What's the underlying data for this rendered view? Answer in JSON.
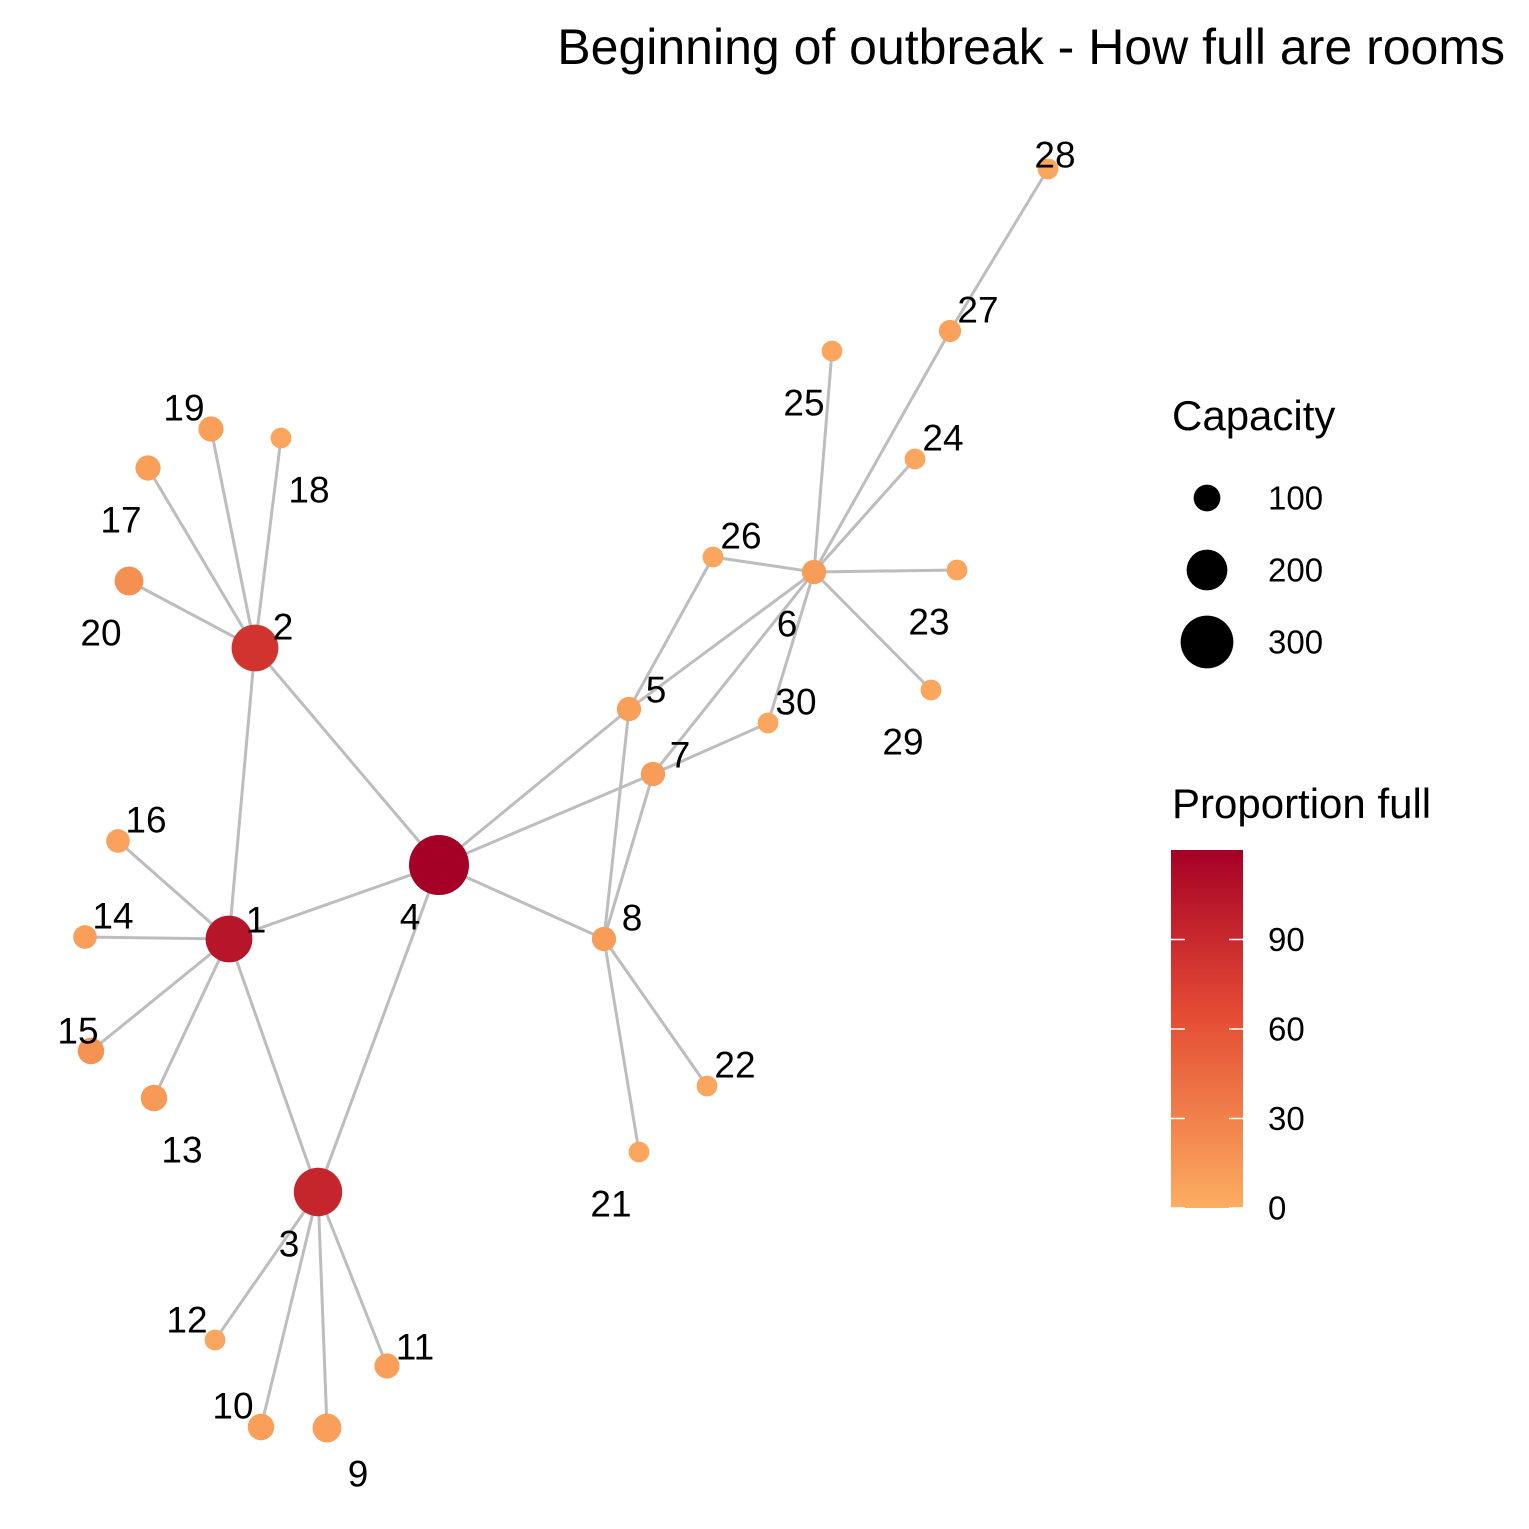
{
  "title": "Beginning of outbreak - How full are rooms",
  "nodes": [
    {
      "id": "1",
      "capacity": 160,
      "proportion_full": 105
    },
    {
      "id": "2",
      "capacity": 160,
      "proportion_full": 82
    },
    {
      "id": "3",
      "capacity": 175,
      "proportion_full": 92
    },
    {
      "id": "4",
      "capacity": 300,
      "proportion_full": 120
    },
    {
      "id": "5",
      "capacity": 22,
      "proportion_full": 10
    },
    {
      "id": "6",
      "capacity": 22,
      "proportion_full": 12
    },
    {
      "id": "7",
      "capacity": 22,
      "proportion_full": 12
    },
    {
      "id": "8",
      "capacity": 22,
      "proportion_full": 12
    },
    {
      "id": "9",
      "capacity": 40,
      "proportion_full": 10
    },
    {
      "id": "10",
      "capacity": 30,
      "proportion_full": 10
    },
    {
      "id": "11",
      "capacity": 25,
      "proportion_full": 10
    },
    {
      "id": "12",
      "capacity": 12,
      "proportion_full": 5
    },
    {
      "id": "13",
      "capacity": 30,
      "proportion_full": 14
    },
    {
      "id": "14",
      "capacity": 20,
      "proportion_full": 10
    },
    {
      "id": "15",
      "capacity": 30,
      "proportion_full": 18
    },
    {
      "id": "16",
      "capacity": 20,
      "proportion_full": 8
    },
    {
      "id": "17",
      "capacity": 25,
      "proportion_full": 10
    },
    {
      "id": "18",
      "capacity": 12,
      "proportion_full": 5
    },
    {
      "id": "19",
      "capacity": 25,
      "proportion_full": 10
    },
    {
      "id": "20",
      "capacity": 40,
      "proportion_full": 20
    },
    {
      "id": "21",
      "capacity": 12,
      "proportion_full": 5
    },
    {
      "id": "22",
      "capacity": 12,
      "proportion_full": 5
    },
    {
      "id": "23",
      "capacity": 12,
      "proportion_full": 5
    },
    {
      "id": "24",
      "capacity": 12,
      "proportion_full": 5
    },
    {
      "id": "25",
      "capacity": 12,
      "proportion_full": 5
    },
    {
      "id": "26",
      "capacity": 12,
      "proportion_full": 5
    },
    {
      "id": "27",
      "capacity": 16,
      "proportion_full": 8
    },
    {
      "id": "28",
      "capacity": 12,
      "proportion_full": 5
    },
    {
      "id": "29",
      "capacity": 12,
      "proportion_full": 5
    },
    {
      "id": "30",
      "capacity": 12,
      "proportion_full": 5
    }
  ],
  "edges": [
    [
      "1",
      "2"
    ],
    [
      "1",
      "3"
    ],
    [
      "1",
      "4"
    ],
    [
      "1",
      "13"
    ],
    [
      "1",
      "14"
    ],
    [
      "1",
      "15"
    ],
    [
      "1",
      "16"
    ],
    [
      "2",
      "4"
    ],
    [
      "2",
      "17"
    ],
    [
      "2",
      "18"
    ],
    [
      "2",
      "19"
    ],
    [
      "2",
      "20"
    ],
    [
      "3",
      "4"
    ],
    [
      "3",
      "9"
    ],
    [
      "3",
      "10"
    ],
    [
      "3",
      "11"
    ],
    [
      "3",
      "12"
    ],
    [
      "4",
      "5"
    ],
    [
      "4",
      "7"
    ],
    [
      "4",
      "8"
    ],
    [
      "5",
      "6"
    ],
    [
      "5",
      "8"
    ],
    [
      "5",
      "26"
    ],
    [
      "6",
      "7"
    ],
    [
      "6",
      "23"
    ],
    [
      "6",
      "24"
    ],
    [
      "6",
      "25"
    ],
    [
      "6",
      "26"
    ],
    [
      "6",
      "27"
    ],
    [
      "6",
      "29"
    ],
    [
      "6",
      "30"
    ],
    [
      "7",
      "8"
    ],
    [
      "7",
      "30"
    ],
    [
      "8",
      "21"
    ],
    [
      "8",
      "22"
    ],
    [
      "27",
      "28"
    ]
  ],
  "legend": {
    "size": {
      "title": "Capacity",
      "items": [
        {
          "label": "100",
          "value": 100
        },
        {
          "label": "200",
          "value": 200
        },
        {
          "label": "300",
          "value": 300
        }
      ]
    },
    "color": {
      "title": "Proportion full",
      "min": 0,
      "max": 120,
      "ticks": [
        {
          "label": "0",
          "value": 0
        },
        {
          "label": "30",
          "value": 30
        },
        {
          "label": "60",
          "value": 60
        },
        {
          "label": "90",
          "value": 90
        }
      ],
      "low_color": "#FDAE61",
      "mid_color": "#E34A33",
      "high_color": "#A50026"
    }
  },
  "colors": {
    "edge": "#BDBDBD",
    "text": "#000000"
  }
}
